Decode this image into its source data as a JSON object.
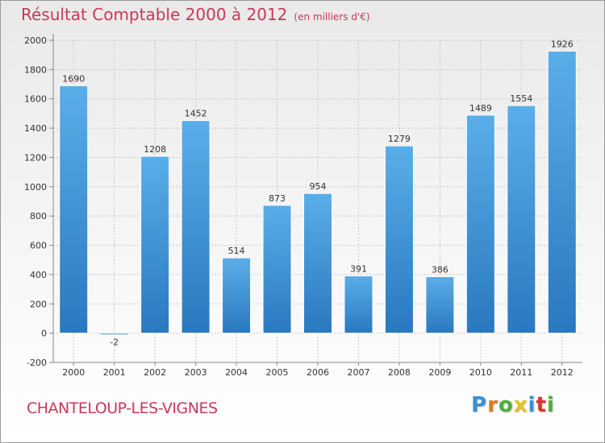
{
  "title": "Résultat Comptable 2000 à 2012",
  "unit": "(en milliers d'€)",
  "commune": "CHANTELOUP-LES-VIGNES",
  "logo": {
    "text": "Proxiti",
    "colors": [
      "#3a8fd3",
      "#e07b22",
      "#4caf3a",
      "#e5c21f",
      "#3a8fd3",
      "#d9342b",
      "#4caf3a"
    ]
  },
  "colors": {
    "bar_top": "#5aaee8",
    "bar_bottom": "#2a78bf",
    "title": "#c8385a",
    "grid": "#c8c8c8"
  },
  "chart_data": {
    "type": "bar",
    "categories": [
      "2000",
      "2001",
      "2002",
      "2003",
      "2004",
      "2005",
      "2006",
      "2007",
      "2008",
      "2009",
      "2010",
      "2011",
      "2012"
    ],
    "values": [
      1690,
      -2,
      1208,
      1452,
      514,
      873,
      954,
      391,
      1279,
      386,
      1489,
      1554,
      1926
    ],
    "ylim": [
      -200,
      2000
    ],
    "yticks": [
      -200,
      0,
      200,
      400,
      600,
      800,
      1000,
      1200,
      1400,
      1600,
      1800,
      2000
    ],
    "grid": true,
    "xlabel": "",
    "ylabel": ""
  }
}
